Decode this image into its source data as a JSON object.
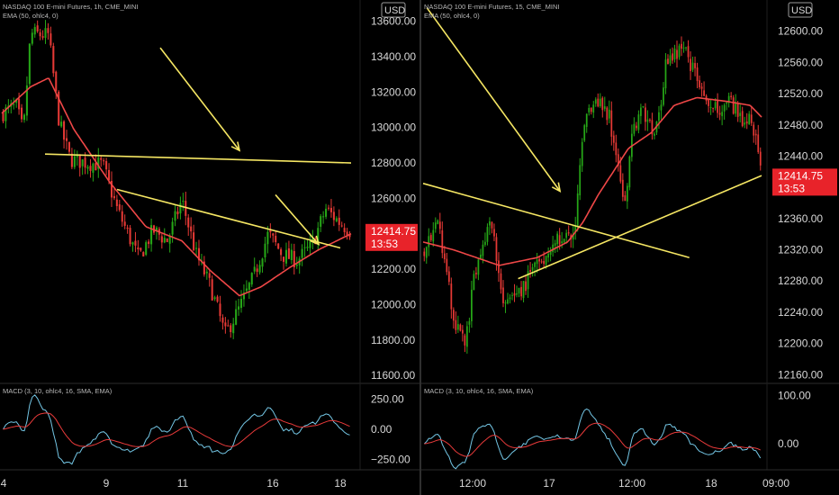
{
  "colors": {
    "background": "#000000",
    "up_candle": "#26a617",
    "down_candle": "#e53935",
    "ema": "#ef4747",
    "trendline": "#f5e663",
    "macd_line": "#74c7e6",
    "signal_line": "#e83a3a",
    "grid_divider": "#2a2a2a",
    "price_tag": "#e8232a"
  },
  "chart_data": [
    {
      "type": "candlestick",
      "header": {
        "title": "NASDAQ 100 E-mini Futures, 1h, CME_MINI",
        "indicator": "EMA (50, ohlc4, 0)"
      },
      "currency": "USD",
      "y_ticks": [
        "13600.00",
        "13400.00",
        "13200.00",
        "13000.00",
        "12800.00",
        "12600.00",
        "12400.00",
        "12200.00",
        "12000.00",
        "11800.00",
        "11600.00"
      ],
      "ylim": [
        11560,
        13720
      ],
      "x_ticks": [
        "4",
        "9",
        "11",
        "16",
        "18"
      ],
      "last_price": {
        "value": "12414.75",
        "countdown": "13:53"
      },
      "close_path": [
        {
          "t": 0,
          "v": 13080
        },
        {
          "t": 4,
          "v": 13120
        },
        {
          "t": 6,
          "v": 12970
        },
        {
          "t": 8,
          "v": 13530
        },
        {
          "t": 13,
          "v": 13520
        },
        {
          "t": 16,
          "v": 13020
        },
        {
          "t": 19,
          "v": 12820
        },
        {
          "t": 24,
          "v": 12800
        },
        {
          "t": 28,
          "v": 12790
        },
        {
          "t": 32,
          "v": 12540
        },
        {
          "t": 38,
          "v": 12260
        },
        {
          "t": 42,
          "v": 12420
        },
        {
          "t": 46,
          "v": 12360
        },
        {
          "t": 50,
          "v": 12590
        },
        {
          "t": 54,
          "v": 12280
        },
        {
          "t": 58,
          "v": 12100
        },
        {
          "t": 62,
          "v": 11830
        },
        {
          "t": 66,
          "v": 11980
        },
        {
          "t": 70,
          "v": 12160
        },
        {
          "t": 74,
          "v": 12400
        },
        {
          "t": 78,
          "v": 12280
        },
        {
          "t": 82,
          "v": 12250
        },
        {
          "t": 86,
          "v": 12330
        },
        {
          "t": 90,
          "v": 12540
        },
        {
          "t": 94,
          "v": 12460
        },
        {
          "t": 97,
          "v": 12415
        }
      ],
      "ema_path": [
        {
          "t": 0,
          "v": 13080
        },
        {
          "t": 8,
          "v": 13230
        },
        {
          "t": 13,
          "v": 13280
        },
        {
          "t": 20,
          "v": 12990
        },
        {
          "t": 30,
          "v": 12690
        },
        {
          "t": 40,
          "v": 12440
        },
        {
          "t": 50,
          "v": 12360
        },
        {
          "t": 58,
          "v": 12190
        },
        {
          "t": 66,
          "v": 12050
        },
        {
          "t": 72,
          "v": 12100
        },
        {
          "t": 80,
          "v": 12210
        },
        {
          "t": 88,
          "v": 12310
        },
        {
          "t": 97,
          "v": 12400
        }
      ],
      "trendlines": [
        {
          "from": {
            "t": 12,
            "v": 12850
          },
          "to": {
            "t": 97,
            "v": 12800
          }
        },
        {
          "from": {
            "t": 32,
            "v": 12650
          },
          "to": {
            "t": 94,
            "v": 12320
          }
        }
      ],
      "arrows": [
        {
          "from": {
            "t": 44,
            "v": 13450
          },
          "to": {
            "t": 66,
            "v": 12870
          }
        },
        {
          "from": {
            "t": 76,
            "v": 12620
          },
          "to": {
            "t": 88,
            "v": 12340
          }
        }
      ],
      "macd": {
        "header": "MACD (3, 10, ohlc4, 16, SMA, EMA)",
        "y_ticks": [
          "250.00",
          "0.00",
          "−250.00"
        ],
        "ylim": [
          -320,
          320
        ]
      }
    },
    {
      "type": "candlestick",
      "header": {
        "title": "NASDAQ 100 E-mini Futures, 15, CME_MINI",
        "indicator": "EMA (50, ohlc4, 0)"
      },
      "currency": "USD",
      "y_ticks": [
        "12600.00",
        "12560.00",
        "12520.00",
        "12480.00",
        "12440.00",
        "12400.00",
        "12360.00",
        "12320.00",
        "12280.00",
        "12240.00",
        "12200.00",
        "12160.00"
      ],
      "ylim": [
        12150,
        12640
      ],
      "x_ticks": [
        "12:00",
        "17",
        "12:00",
        "18",
        "09:00"
      ],
      "last_price": {
        "value": "12414.75",
        "countdown": "13:53"
      },
      "close_path": [
        {
          "t": 0,
          "v": 12320
        },
        {
          "t": 4,
          "v": 12360
        },
        {
          "t": 8,
          "v": 12230
        },
        {
          "t": 11,
          "v": 12200
        },
        {
          "t": 14,
          "v": 12300
        },
        {
          "t": 18,
          "v": 12360
        },
        {
          "t": 21,
          "v": 12250
        },
        {
          "t": 23,
          "v": 12250
        },
        {
          "t": 26,
          "v": 12270
        },
        {
          "t": 30,
          "v": 12300
        },
        {
          "t": 35,
          "v": 12330
        },
        {
          "t": 40,
          "v": 12340
        },
        {
          "t": 42,
          "v": 12470
        },
        {
          "t": 45,
          "v": 12520
        },
        {
          "t": 49,
          "v": 12490
        },
        {
          "t": 53,
          "v": 12380
        },
        {
          "t": 55,
          "v": 12470
        },
        {
          "t": 58,
          "v": 12500
        },
        {
          "t": 61,
          "v": 12460
        },
        {
          "t": 64,
          "v": 12560
        },
        {
          "t": 68,
          "v": 12580
        },
        {
          "t": 71,
          "v": 12550
        },
        {
          "t": 74,
          "v": 12520
        },
        {
          "t": 78,
          "v": 12500
        },
        {
          "t": 81,
          "v": 12510
        },
        {
          "t": 84,
          "v": 12480
        },
        {
          "t": 86,
          "v": 12500
        },
        {
          "t": 89,
          "v": 12415
        }
      ],
      "ema_path": [
        {
          "t": 0,
          "v": 12330
        },
        {
          "t": 8,
          "v": 12320
        },
        {
          "t": 20,
          "v": 12300
        },
        {
          "t": 30,
          "v": 12310
        },
        {
          "t": 38,
          "v": 12330
        },
        {
          "t": 42,
          "v": 12355
        },
        {
          "t": 46,
          "v": 12390
        },
        {
          "t": 50,
          "v": 12420
        },
        {
          "t": 54,
          "v": 12450
        },
        {
          "t": 60,
          "v": 12470
        },
        {
          "t": 66,
          "v": 12505
        },
        {
          "t": 72,
          "v": 12515
        },
        {
          "t": 80,
          "v": 12510
        },
        {
          "t": 86,
          "v": 12505
        },
        {
          "t": 89,
          "v": 12490
        }
      ],
      "trendlines": [
        {
          "from": {
            "t": 0,
            "v": 12405
          },
          "to": {
            "t": 70,
            "v": 12310
          }
        },
        {
          "from": {
            "t": 25,
            "v": 12283
          },
          "to": {
            "t": 89,
            "v": 12415
          }
        }
      ],
      "arrows": [
        {
          "from": {
            "t": 1,
            "v": 12630
          },
          "to": {
            "t": 36,
            "v": 12395
          }
        }
      ],
      "macd": {
        "header": "MACD (3, 10, ohlc4, 16, SMA, EMA)",
        "y_ticks": [
          "100.00",
          "0.00"
        ],
        "ylim": [
          -50,
          110
        ]
      }
    }
  ]
}
